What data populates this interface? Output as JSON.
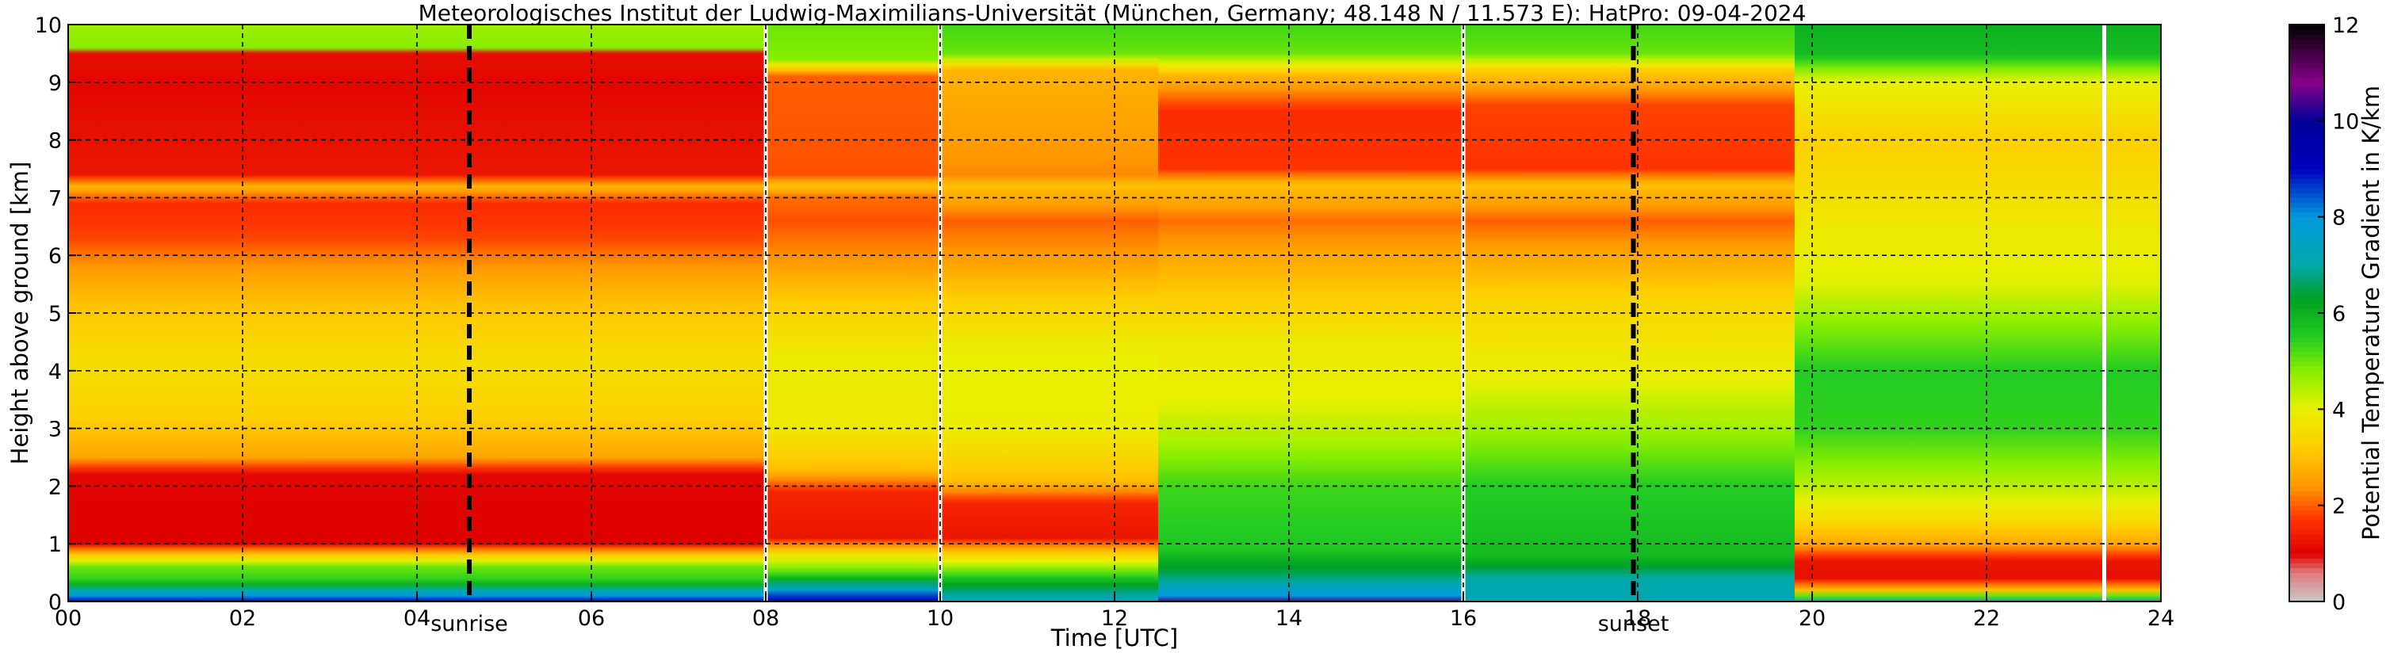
{
  "chart_data": {
    "type": "heatmap",
    "title": "Meteorologisches Institut der Ludwig-Maximilians-Universität (München, Germany; 48.148 N / 11.573 E):    HatPro: 09-04-2024",
    "xlabel": "Time [UTC]",
    "ylabel": "Height above ground [km]",
    "colorbar_label": "Potential Temperature Gradient in K/km",
    "xlim": [
      0,
      24
    ],
    "ylim": [
      0,
      10
    ],
    "clim": [
      0,
      12
    ],
    "x_ticks": [
      0,
      2,
      4,
      6,
      8,
      10,
      12,
      14,
      16,
      18,
      20,
      22,
      24
    ],
    "x_tick_labels": [
      "00",
      "02",
      "04",
      "06",
      "08",
      "10",
      "12",
      "14",
      "16",
      "18",
      "20",
      "22",
      "24"
    ],
    "y_ticks": [
      0,
      1,
      2,
      3,
      4,
      5,
      6,
      7,
      8,
      9,
      10
    ],
    "y_tick_labels": [
      "0",
      "1",
      "2",
      "3",
      "4",
      "5",
      "6",
      "7",
      "8",
      "9",
      "10"
    ],
    "colorbar_ticks": [
      0,
      2,
      4,
      6,
      8,
      10,
      12
    ],
    "colorbar_tick_labels": [
      "0",
      "2",
      "4",
      "6",
      "8",
      "10",
      "12"
    ],
    "grid": true,
    "colormap": [
      {
        "v": 0.0,
        "c": "#c8c8c8"
      },
      {
        "v": 0.6,
        "c": "#e07a7a"
      },
      {
        "v": 1.0,
        "c": "#dd0000"
      },
      {
        "v": 1.7,
        "c": "#ff3300"
      },
      {
        "v": 2.4,
        "c": "#ff9900"
      },
      {
        "v": 3.2,
        "c": "#ffcc00"
      },
      {
        "v": 4.0,
        "c": "#e8f000"
      },
      {
        "v": 4.8,
        "c": "#88ee00"
      },
      {
        "v": 5.5,
        "c": "#22cc22"
      },
      {
        "v": 6.3,
        "c": "#00a020"
      },
      {
        "v": 7.0,
        "c": "#00a8a8"
      },
      {
        "v": 8.0,
        "c": "#0099dd"
      },
      {
        "v": 9.0,
        "c": "#0000c0"
      },
      {
        "v": 10.0,
        "c": "#000099"
      },
      {
        "v": 10.8,
        "c": "#880088"
      },
      {
        "v": 12.0,
        "c": "#000000"
      }
    ],
    "markers": [
      {
        "label": "sunrise",
        "time": 4.6
      },
      {
        "label": "sunset",
        "time": 17.95
      }
    ],
    "data_gaps": [
      8.0,
      10.0,
      16.0,
      23.35
    ],
    "segments": [
      {
        "t0": 0.0,
        "t1": 8.0,
        "profile": [
          {
            "h": 0.0,
            "v": 9.0
          },
          {
            "h": 0.15,
            "v": 7.5
          },
          {
            "h": 0.35,
            "v": 5.5
          },
          {
            "h": 0.6,
            "v": 5.0
          },
          {
            "h": 0.85,
            "v": 2.8
          },
          {
            "h": 1.0,
            "v": 1.0
          },
          {
            "h": 2.2,
            "v": 1.1
          },
          {
            "h": 2.5,
            "v": 2.6
          },
          {
            "h": 3.2,
            "v": 3.3
          },
          {
            "h": 4.2,
            "v": 3.6
          },
          {
            "h": 5.2,
            "v": 3.0
          },
          {
            "h": 5.9,
            "v": 2.3
          },
          {
            "h": 6.3,
            "v": 1.8
          },
          {
            "h": 6.9,
            "v": 1.6
          },
          {
            "h": 7.2,
            "v": 2.8
          },
          {
            "h": 7.4,
            "v": 1.3
          },
          {
            "h": 9.0,
            "v": 1.1
          },
          {
            "h": 9.5,
            "v": 1.2
          },
          {
            "h": 9.6,
            "v": 4.8
          },
          {
            "h": 10.0,
            "v": 4.6
          }
        ]
      },
      {
        "t0": 8.0,
        "t1": 10.0,
        "profile": [
          {
            "h": 0.0,
            "v": 9.5
          },
          {
            "h": 0.25,
            "v": 7.2
          },
          {
            "h": 0.5,
            "v": 5.2
          },
          {
            "h": 0.85,
            "v": 3.5
          },
          {
            "h": 1.1,
            "v": 1.3
          },
          {
            "h": 1.9,
            "v": 1.5
          },
          {
            "h": 2.3,
            "v": 3.0
          },
          {
            "h": 3.0,
            "v": 3.8
          },
          {
            "h": 4.2,
            "v": 3.9
          },
          {
            "h": 5.2,
            "v": 3.2
          },
          {
            "h": 5.9,
            "v": 2.4
          },
          {
            "h": 6.6,
            "v": 1.9
          },
          {
            "h": 7.0,
            "v": 2.1
          },
          {
            "h": 7.2,
            "v": 3.0
          },
          {
            "h": 7.4,
            "v": 1.9
          },
          {
            "h": 9.1,
            "v": 2.0
          },
          {
            "h": 9.4,
            "v": 4.8
          },
          {
            "h": 10.0,
            "v": 5.0
          }
        ]
      },
      {
        "t0": 10.0,
        "t1": 12.5,
        "profile": [
          {
            "h": 0.0,
            "v": 7.5
          },
          {
            "h": 0.3,
            "v": 6.2
          },
          {
            "h": 0.6,
            "v": 4.6
          },
          {
            "h": 0.9,
            "v": 2.8
          },
          {
            "h": 1.1,
            "v": 1.3
          },
          {
            "h": 1.7,
            "v": 1.5
          },
          {
            "h": 2.1,
            "v": 3.0
          },
          {
            "h": 3.0,
            "v": 3.9
          },
          {
            "h": 4.2,
            "v": 4.0
          },
          {
            "h": 5.2,
            "v": 3.3
          },
          {
            "h": 5.9,
            "v": 2.5
          },
          {
            "h": 6.6,
            "v": 2.0
          },
          {
            "h": 7.2,
            "v": 3.0
          },
          {
            "h": 7.4,
            "v": 2.3
          },
          {
            "h": 9.2,
            "v": 2.8
          },
          {
            "h": 9.5,
            "v": 5.0
          },
          {
            "h": 10.0,
            "v": 5.3
          }
        ]
      },
      {
        "t0": 12.5,
        "t1": 16.0,
        "profile": [
          {
            "h": 0.0,
            "v": 10.5
          },
          {
            "h": 0.1,
            "v": 8.0
          },
          {
            "h": 0.4,
            "v": 6.8
          },
          {
            "h": 0.9,
            "v": 5.6
          },
          {
            "h": 2.0,
            "v": 5.3
          },
          {
            "h": 2.8,
            "v": 4.5
          },
          {
            "h": 3.5,
            "v": 4.0
          },
          {
            "h": 4.5,
            "v": 3.8
          },
          {
            "h": 5.3,
            "v": 3.2
          },
          {
            "h": 6.0,
            "v": 2.6
          },
          {
            "h": 6.6,
            "v": 2.1
          },
          {
            "h": 7.2,
            "v": 3.0
          },
          {
            "h": 7.5,
            "v": 1.7
          },
          {
            "h": 8.5,
            "v": 1.6
          },
          {
            "h": 9.1,
            "v": 2.8
          },
          {
            "h": 9.5,
            "v": 5.0
          },
          {
            "h": 10.0,
            "v": 5.3
          }
        ]
      },
      {
        "t0": 16.0,
        "t1": 19.8,
        "profile": [
          {
            "h": 0.0,
            "v": 7.2
          },
          {
            "h": 0.4,
            "v": 7.0
          },
          {
            "h": 0.8,
            "v": 5.8
          },
          {
            "h": 2.0,
            "v": 5.5
          },
          {
            "h": 3.0,
            "v": 4.6
          },
          {
            "h": 4.0,
            "v": 3.9
          },
          {
            "h": 5.2,
            "v": 3.4
          },
          {
            "h": 6.0,
            "v": 2.6
          },
          {
            "h": 6.6,
            "v": 2.0
          },
          {
            "h": 7.2,
            "v": 3.0
          },
          {
            "h": 7.5,
            "v": 1.7
          },
          {
            "h": 8.6,
            "v": 1.8
          },
          {
            "h": 9.2,
            "v": 3.2
          },
          {
            "h": 9.5,
            "v": 5.0
          },
          {
            "h": 10.0,
            "v": 5.3
          }
        ]
      },
      {
        "t0": 19.8,
        "t1": 24.0,
        "profile": [
          {
            "h": 0.0,
            "v": 7.0
          },
          {
            "h": 0.2,
            "v": 3.0
          },
          {
            "h": 0.4,
            "v": 1.2
          },
          {
            "h": 0.7,
            "v": 1.3
          },
          {
            "h": 1.0,
            "v": 2.6
          },
          {
            "h": 1.4,
            "v": 3.5
          },
          {
            "h": 2.0,
            "v": 4.4
          },
          {
            "h": 3.0,
            "v": 5.4
          },
          {
            "h": 4.0,
            "v": 5.5
          },
          {
            "h": 4.8,
            "v": 4.8
          },
          {
            "h": 5.5,
            "v": 4.1
          },
          {
            "h": 6.5,
            "v": 3.8
          },
          {
            "h": 7.3,
            "v": 3.5
          },
          {
            "h": 8.0,
            "v": 3.3
          },
          {
            "h": 9.0,
            "v": 4.0
          },
          {
            "h": 9.5,
            "v": 5.8
          },
          {
            "h": 10.0,
            "v": 6.0
          }
        ]
      }
    ]
  }
}
